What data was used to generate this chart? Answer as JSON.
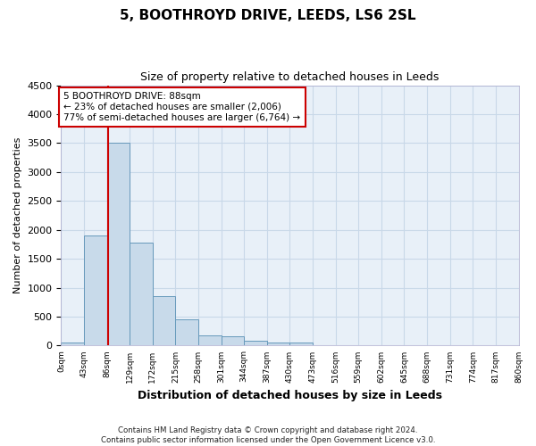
{
  "title1": "5, BOOTHROYD DRIVE, LEEDS, LS6 2SL",
  "title2": "Size of property relative to detached houses in Leeds",
  "xlabel": "Distribution of detached houses by size in Leeds",
  "ylabel": "Number of detached properties",
  "bar_color": "#c8daea",
  "bar_edge_color": "#6699bb",
  "bin_edges": [
    0,
    43,
    86,
    129,
    172,
    215,
    258,
    301,
    344,
    387,
    430,
    473,
    516,
    559,
    602,
    645,
    688,
    731,
    774,
    817,
    860
  ],
  "bar_heights": [
    50,
    1900,
    3500,
    1780,
    850,
    450,
    170,
    165,
    90,
    60,
    55,
    0,
    0,
    0,
    0,
    0,
    0,
    0,
    0,
    0
  ],
  "property_size": 88,
  "annotation_text": "5 BOOTHROYD DRIVE: 88sqm\n← 23% of detached houses are smaller (2,006)\n77% of semi-detached houses are larger (6,764) →",
  "annotation_box_color": "#ffffff",
  "annotation_box_edge": "#cc0000",
  "vline_color": "#cc0000",
  "ylim": [
    0,
    4500
  ],
  "xlim": [
    0,
    860
  ],
  "grid_color": "#c8d8e8",
  "bg_color": "#ffffff",
  "plot_bg_color": "#e8f0f8",
  "footnote1": "Contains HM Land Registry data © Crown copyright and database right 2024.",
  "footnote2": "Contains public sector information licensed under the Open Government Licence v3.0.",
  "tick_labels": [
    "0sqm",
    "43sqm",
    "86sqm",
    "129sqm",
    "172sqm",
    "215sqm",
    "258sqm",
    "301sqm",
    "344sqm",
    "387sqm",
    "430sqm",
    "473sqm",
    "516sqm",
    "559sqm",
    "602sqm",
    "645sqm",
    "688sqm",
    "731sqm",
    "774sqm",
    "817sqm",
    "860sqm"
  ],
  "yticks": [
    0,
    500,
    1000,
    1500,
    2000,
    2500,
    3000,
    3500,
    4000,
    4500
  ]
}
